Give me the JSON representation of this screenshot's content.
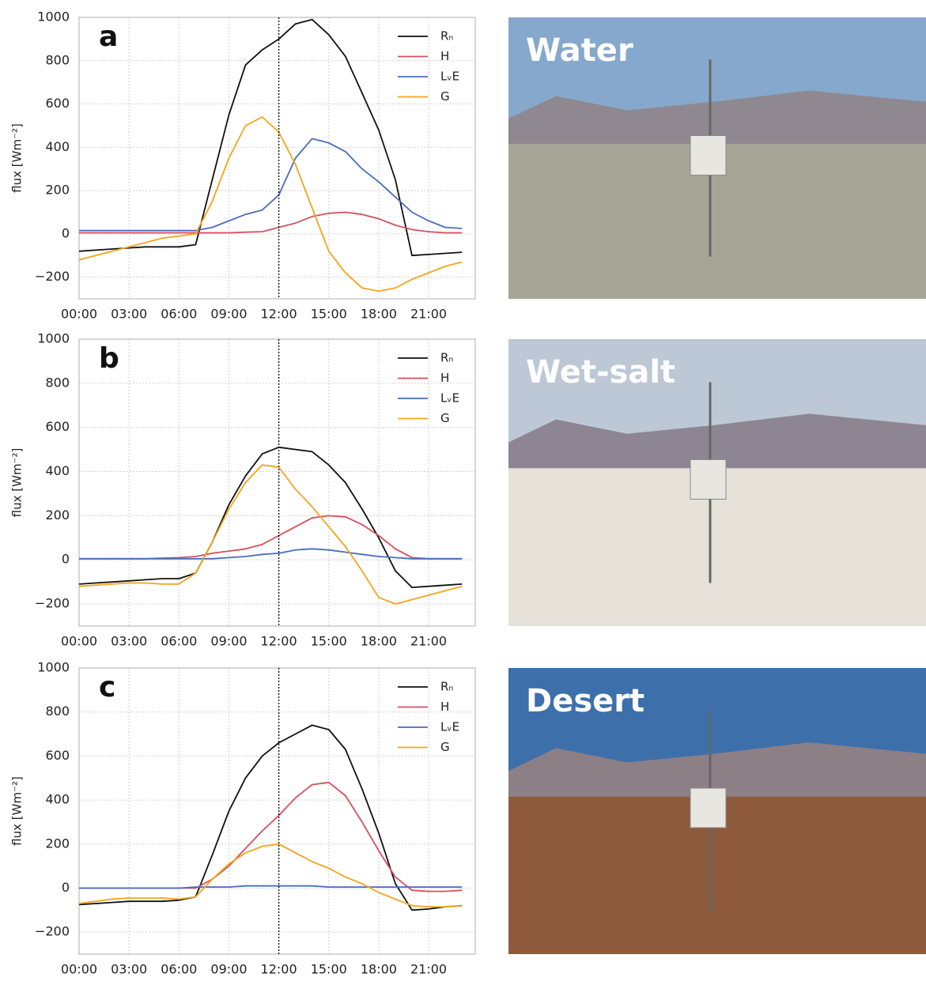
{
  "chart_data": [
    {
      "type": "line",
      "panel_label": "a",
      "photo_label": "Water",
      "ylabel": "flux [Wm⁻²]",
      "x": [
        0,
        1,
        2,
        3,
        4,
        5,
        6,
        7,
        8,
        9,
        10,
        11,
        12,
        13,
        14,
        15,
        16,
        17,
        18,
        19,
        20,
        21,
        22,
        23
      ],
      "xlim": [
        0,
        23.8
      ],
      "ylim": [
        -300,
        1000
      ],
      "xticks": [
        {
          "value": 0,
          "label": "00:00"
        },
        {
          "value": 3,
          "label": "03:00"
        },
        {
          "value": 6,
          "label": "06:00"
        },
        {
          "value": 9,
          "label": "09:00"
        },
        {
          "value": 12,
          "label": "12:00"
        },
        {
          "value": 15,
          "label": "15:00"
        },
        {
          "value": 18,
          "label": "18:00"
        },
        {
          "value": 21,
          "label": "21:00"
        }
      ],
      "yticks": [
        {
          "value": -200,
          "label": "−200"
        },
        0,
        200,
        400,
        600,
        800,
        1000
      ],
      "grid": true,
      "vline": 12,
      "legend": "upper right",
      "series": [
        {
          "name": "Rₙ",
          "color": "#111111",
          "values": [
            -80,
            -75,
            -70,
            -65,
            -60,
            -60,
            -60,
            -50,
            250,
            550,
            780,
            850,
            900,
            970,
            990,
            920,
            820,
            650,
            480,
            250,
            -100,
            -95,
            -90,
            -85
          ]
        },
        {
          "name": "H",
          "color": "#d6505c",
          "values": [
            5,
            5,
            5,
            5,
            5,
            5,
            5,
            5,
            5,
            5,
            8,
            10,
            30,
            50,
            80,
            95,
            100,
            90,
            70,
            40,
            20,
            10,
            5,
            5
          ]
        },
        {
          "name": "LᵥE",
          "color": "#4a6cc0",
          "values": [
            15,
            15,
            15,
            15,
            15,
            15,
            15,
            15,
            30,
            60,
            90,
            110,
            180,
            350,
            440,
            420,
            380,
            300,
            240,
            170,
            100,
            60,
            30,
            25
          ]
        },
        {
          "name": "G",
          "color": "#f4a41c",
          "values": [
            -120,
            -100,
            -80,
            -60,
            -40,
            -20,
            -10,
            0,
            150,
            350,
            500,
            540,
            470,
            320,
            120,
            -80,
            -180,
            -250,
            -265,
            -250,
            -210,
            -180,
            -150,
            -130
          ]
        }
      ]
    },
    {
      "type": "line",
      "panel_label": "b",
      "photo_label": "Wet-salt",
      "ylabel": "flux [Wm⁻²]",
      "x": [
        0,
        1,
        2,
        3,
        4,
        5,
        6,
        7,
        8,
        9,
        10,
        11,
        12,
        13,
        14,
        15,
        16,
        17,
        18,
        19,
        20,
        21,
        22,
        23
      ],
      "xlim": [
        0,
        23.8
      ],
      "ylim": [
        -300,
        1000
      ],
      "xticks": [
        {
          "value": 0,
          "label": "00:00"
        },
        {
          "value": 3,
          "label": "03:00"
        },
        {
          "value": 6,
          "label": "06:00"
        },
        {
          "value": 9,
          "label": "09:00"
        },
        {
          "value": 12,
          "label": "12:00"
        },
        {
          "value": 15,
          "label": "15:00"
        },
        {
          "value": 18,
          "label": "18:00"
        },
        {
          "value": 21,
          "label": "21:00"
        }
      ],
      "yticks": [
        {
          "value": -200,
          "label": "−200"
        },
        0,
        200,
        400,
        600,
        800,
        1000
      ],
      "grid": true,
      "vline": 12,
      "legend": "upper right",
      "series": [
        {
          "name": "Rₙ",
          "color": "#111111",
          "values": [
            -110,
            -105,
            -100,
            -95,
            -90,
            -85,
            -85,
            -60,
            80,
            250,
            380,
            480,
            510,
            500,
            490,
            430,
            350,
            230,
            100,
            -50,
            -125,
            -120,
            -115,
            -110
          ]
        },
        {
          "name": "H",
          "color": "#d6505c",
          "values": [
            5,
            5,
            5,
            5,
            5,
            8,
            10,
            15,
            30,
            40,
            50,
            70,
            110,
            150,
            190,
            200,
            195,
            160,
            110,
            50,
            10,
            5,
            5,
            5
          ]
        },
        {
          "name": "LᵥE",
          "color": "#4a6cc0",
          "values": [
            5,
            5,
            5,
            5,
            5,
            5,
            5,
            5,
            5,
            10,
            15,
            25,
            30,
            45,
            50,
            45,
            35,
            25,
            15,
            10,
            5,
            5,
            5,
            5
          ]
        },
        {
          "name": "G",
          "color": "#f4a41c",
          "values": [
            -120,
            -115,
            -110,
            -105,
            -105,
            -110,
            -110,
            -60,
            80,
            230,
            350,
            430,
            420,
            320,
            240,
            150,
            60,
            -50,
            -170,
            -200,
            -180,
            -160,
            -140,
            -120
          ]
        }
      ]
    },
    {
      "type": "line",
      "panel_label": "c",
      "photo_label": "Desert",
      "ylabel": "flux [Wm⁻²]",
      "x": [
        0,
        1,
        2,
        3,
        4,
        5,
        6,
        7,
        8,
        9,
        10,
        11,
        12,
        13,
        14,
        15,
        16,
        17,
        18,
        19,
        20,
        21,
        22,
        23
      ],
      "xlim": [
        0,
        23.8
      ],
      "ylim": [
        -300,
        1000
      ],
      "xticks": [
        {
          "value": 0,
          "label": "00:00"
        },
        {
          "value": 3,
          "label": "03:00"
        },
        {
          "value": 6,
          "label": "06:00"
        },
        {
          "value": 9,
          "label": "09:00"
        },
        {
          "value": 12,
          "label": "12:00"
        },
        {
          "value": 15,
          "label": "15:00"
        },
        {
          "value": 18,
          "label": "18:00"
        },
        {
          "value": 21,
          "label": "21:00"
        }
      ],
      "yticks": [
        {
          "value": -200,
          "label": "−200"
        },
        0,
        200,
        400,
        600,
        800,
        1000
      ],
      "grid": true,
      "vline": 12,
      "legend": "upper right",
      "series": [
        {
          "name": "Rₙ",
          "color": "#111111",
          "values": [
            -75,
            -70,
            -65,
            -60,
            -60,
            -60,
            -55,
            -40,
            150,
            350,
            500,
            600,
            660,
            700,
            740,
            720,
            630,
            450,
            250,
            20,
            -100,
            -95,
            -85,
            -80
          ]
        },
        {
          "name": "H",
          "color": "#d6505c",
          "values": [
            0,
            0,
            0,
            0,
            0,
            0,
            0,
            0,
            40,
            100,
            180,
            260,
            330,
            410,
            470,
            480,
            420,
            300,
            170,
            50,
            -10,
            -15,
            -15,
            -10
          ]
        },
        {
          "name": "LᵥE",
          "color": "#4a6cc0",
          "values": [
            0,
            0,
            0,
            0,
            0,
            0,
            0,
            5,
            5,
            5,
            10,
            10,
            10,
            10,
            10,
            5,
            5,
            5,
            5,
            5,
            5,
            5,
            5,
            5
          ]
        },
        {
          "name": "G",
          "color": "#f4a41c",
          "values": [
            -70,
            -60,
            -50,
            -45,
            -45,
            -45,
            -50,
            -40,
            40,
            110,
            160,
            190,
            200,
            160,
            120,
            90,
            50,
            20,
            -20,
            -50,
            -80,
            -85,
            -85,
            -80
          ]
        }
      ]
    }
  ]
}
